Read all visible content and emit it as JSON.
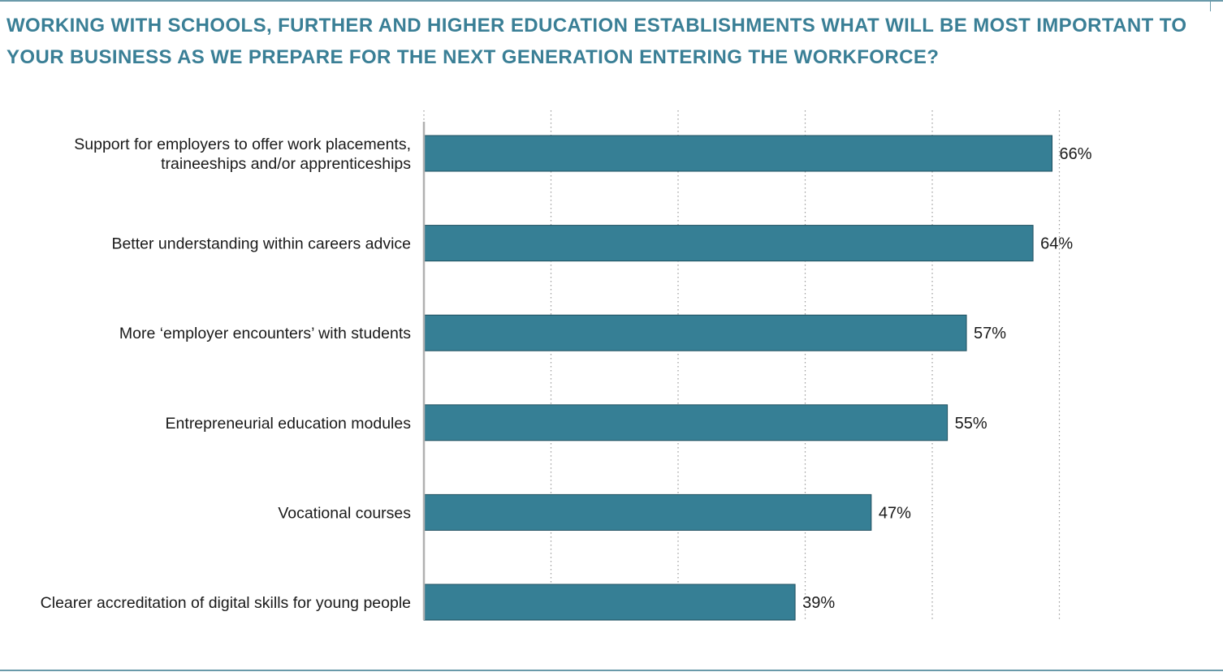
{
  "title": "WORKING WITH SCHOOLS, FURTHER AND HIGHER EDUCATION ESTABLISHMENTS WHAT WILL BE MOST IMPORTANT TO\nYOUR BUSINESS AS WE PREPARE FOR THE NEXT GENERATION ENTERING THE WORKFORCE?",
  "colors": {
    "title": "#3a7f96",
    "bar": "#367f95",
    "bar_edge": "#1f4f5f",
    "axis": "#b0b0b0",
    "grid": "#9a9a9a",
    "rule": "#6a9aaa"
  },
  "chart_data": {
    "type": "bar",
    "orientation": "horizontal",
    "title": "WORKING WITH SCHOOLS, FURTHER AND HIGHER EDUCATION ESTABLISHMENTS WHAT WILL BE MOST IMPORTANT TO YOUR BUSINESS AS WE PREPARE FOR THE NEXT GENERATION ENTERING THE WORKFORCE?",
    "categories": [
      [
        "Support for employers to offer work placements,",
        "traineeships and/or apprenticeships"
      ],
      [
        "Better understanding within careers advice"
      ],
      [
        "More ‘employer encounters’ with students"
      ],
      [
        "Entrepreneurial education modules"
      ],
      [
        "Vocational courses"
      ],
      [
        "Clearer accreditation of digital skills for young people"
      ]
    ],
    "values": [
      66,
      64,
      57,
      55,
      47,
      39
    ],
    "value_labels": [
      "66%",
      "64%",
      "57%",
      "55%",
      "47%",
      "39%"
    ],
    "unit": "%",
    "xlim": [
      0,
      67
    ],
    "grid": "vertical dotted",
    "legend": "none"
  }
}
